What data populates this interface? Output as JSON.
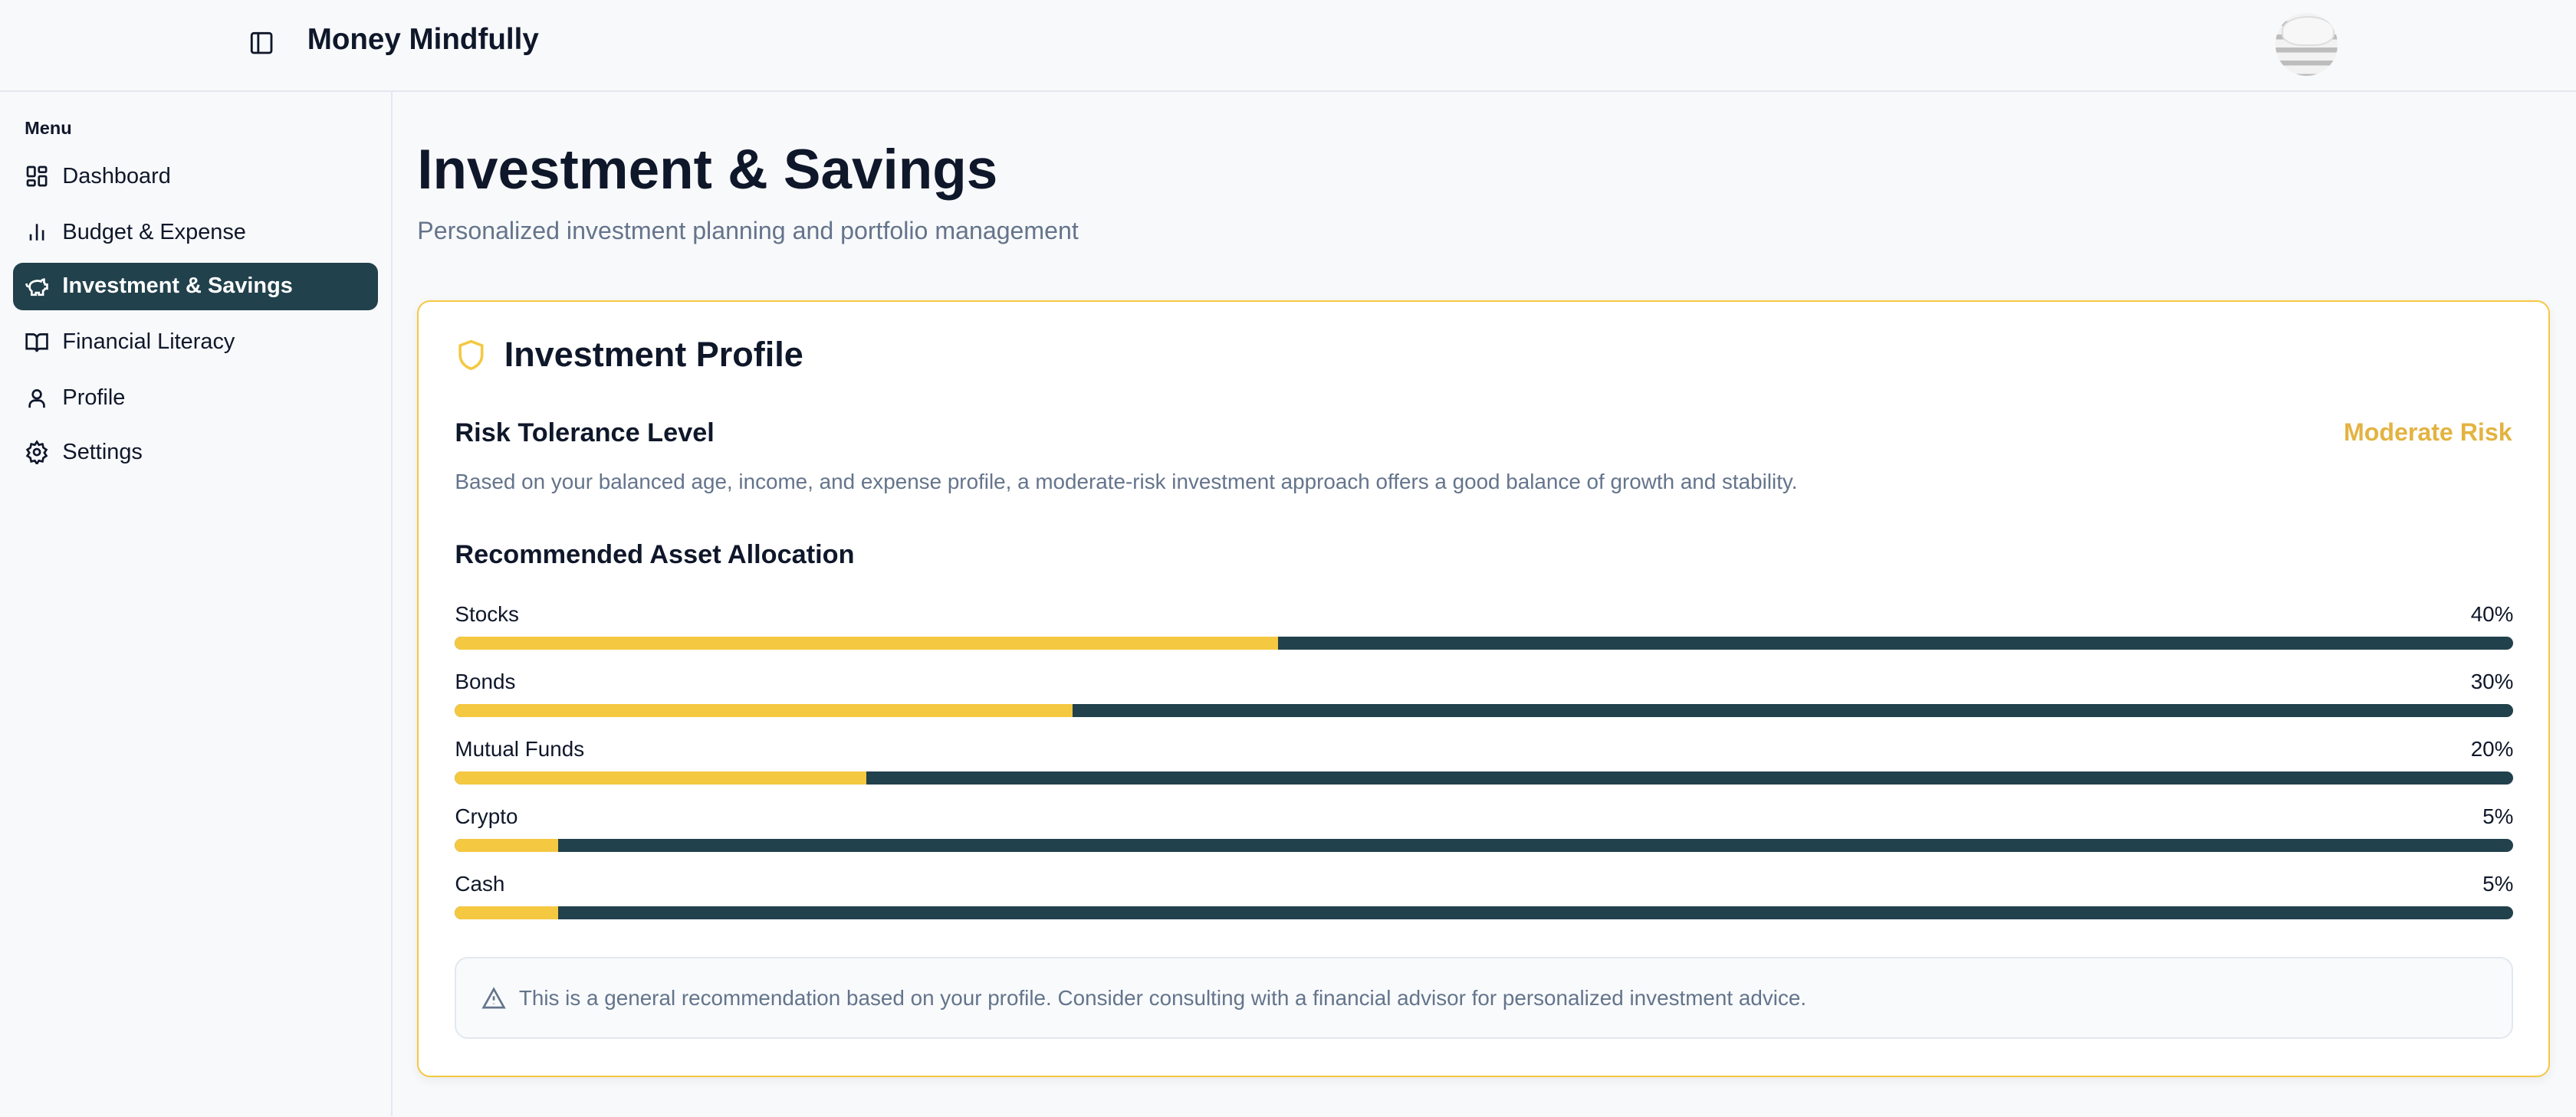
{
  "header": {
    "title": "Money Mindfully"
  },
  "sidebar": {
    "menu_label": "Menu",
    "items": [
      {
        "label": "Dashboard",
        "icon": "dashboard-icon"
      },
      {
        "label": "Budget & Expense",
        "icon": "bar-chart-icon"
      },
      {
        "label": "Investment & Savings",
        "icon": "piggy-bank-icon",
        "active": true
      },
      {
        "label": "Financial Literacy",
        "icon": "book-icon"
      },
      {
        "label": "Profile",
        "icon": "user-icon"
      },
      {
        "label": "Settings",
        "icon": "gear-icon"
      }
    ]
  },
  "page": {
    "title": "Investment & Savings",
    "subtitle": "Personalized investment planning and portfolio management"
  },
  "profile": {
    "title": "Investment Profile",
    "risk_label": "Risk Tolerance Level",
    "risk_value": "Moderate Risk",
    "risk_description": "Based on your balanced age, income, and expense profile, a moderate-risk investment approach offers a good balance of growth and stability.",
    "allocation_title": "Recommended Asset Allocation",
    "allocations": [
      {
        "label": "Stocks",
        "percent_text": "40%",
        "percent": 40
      },
      {
        "label": "Bonds",
        "percent_text": "30%",
        "percent": 30
      },
      {
        "label": "Mutual Funds",
        "percent_text": "20%",
        "percent": 20
      },
      {
        "label": "Crypto",
        "percent_text": "5%",
        "percent": 5
      },
      {
        "label": "Cash",
        "percent_text": "5%",
        "percent": 5
      }
    ],
    "notice": "This is a general recommendation based on your profile. Consider consulting with a financial advisor for personalized investment advice."
  },
  "colors": {
    "accent": "#f5c842",
    "primary": "#21414c",
    "risk": "#e3b341",
    "muted": "#64748b"
  }
}
